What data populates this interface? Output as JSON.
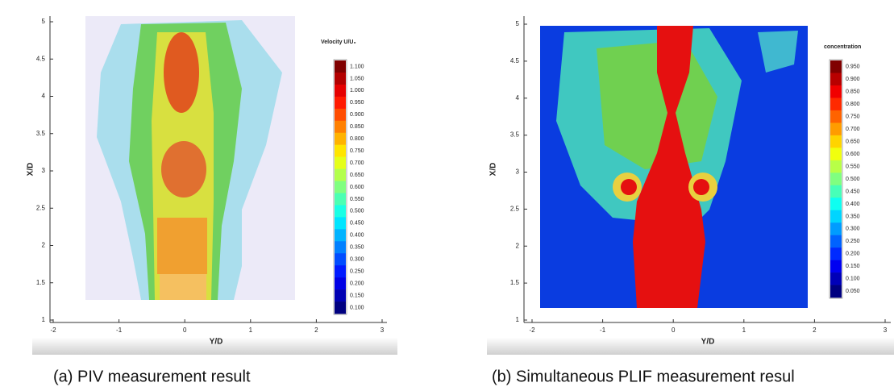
{
  "panels": [
    {
      "y_axis_title": "X/D",
      "x_axis_title": "Y/D",
      "y_ticks": [
        "1",
        "1.5",
        "2",
        "2.5",
        "3",
        "3.5",
        "4",
        "4.5",
        "5"
      ],
      "x_ticks": [
        "-2",
        "-1",
        "0",
        "1",
        "2",
        "3"
      ],
      "colorbar_title": "Velocity U/U₀",
      "colorbar_labels": [
        "1.100",
        "1.050",
        "1.000",
        "0.950",
        "0.900",
        "0.850",
        "0.800",
        "0.750",
        "0.700",
        "0.650",
        "0.600",
        "0.550",
        "0.500",
        "0.450",
        "0.400",
        "0.350",
        "0.300",
        "0.250",
        "0.200",
        "0.150",
        "0.100"
      ],
      "caption": "(a) PIV measurement result"
    },
    {
      "y_axis_title": "X/D",
      "x_axis_title": "Y/D",
      "y_ticks": [
        "1",
        "1.5",
        "2",
        "2.5",
        "3",
        "3.5",
        "4",
        "4.5",
        "5"
      ],
      "x_ticks": [
        "-2",
        "-1",
        "0",
        "1",
        "2",
        "3"
      ],
      "colorbar_title": "concentration",
      "colorbar_labels": [
        "0.950",
        "0.900",
        "0.850",
        "0.800",
        "0.750",
        "0.700",
        "0.650",
        "0.600",
        "0.550",
        "0.500",
        "0.450",
        "0.400",
        "0.350",
        "0.300",
        "0.250",
        "0.200",
        "0.150",
        "0.100",
        "0.050"
      ],
      "caption": "(b) Simultaneous PLIF measurement resul"
    }
  ]
}
